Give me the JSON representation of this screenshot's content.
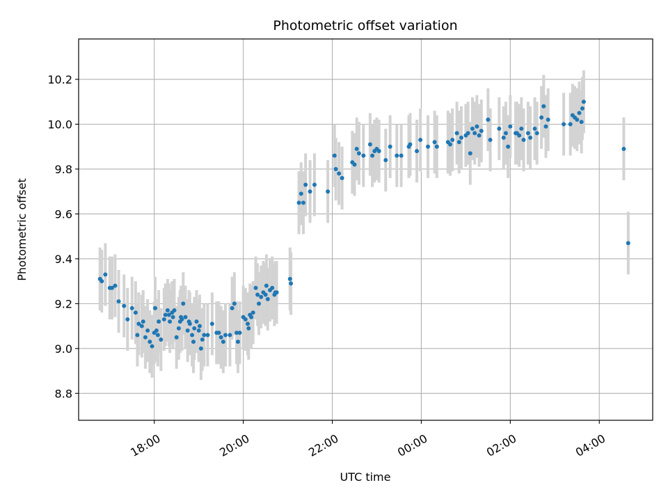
{
  "chart_data": {
    "type": "scatter",
    "title": "Photometric offset variation",
    "xlabel": "UTC time",
    "ylabel": "Photometric offset",
    "grid": true,
    "legend": "none",
    "x_unit": "hours since 18:00 UTC",
    "xlim": [
      -1.7,
      11.2
    ],
    "ylim": [
      8.68,
      10.38
    ],
    "x_ticks": [
      {
        "value": 0,
        "label": "18:00"
      },
      {
        "value": 2,
        "label": "20:00"
      },
      {
        "value": 4,
        "label": "22:00"
      },
      {
        "value": 6,
        "label": "00:00"
      },
      {
        "value": 8,
        "label": "02:00"
      },
      {
        "value": 10,
        "label": "04:00"
      }
    ],
    "y_ticks": [
      {
        "value": 8.8,
        "label": "8.8"
      },
      {
        "value": 9.0,
        "label": "9.0"
      },
      {
        "value": 9.2,
        "label": "9.2"
      },
      {
        "value": 9.4,
        "label": "9.4"
      },
      {
        "value": 9.6,
        "label": "9.6"
      },
      {
        "value": 9.8,
        "label": "9.8"
      },
      {
        "value": 10.0,
        "label": "10.0"
      },
      {
        "value": 10.2,
        "label": "10.2"
      }
    ],
    "series": [
      {
        "name": "photometric offset",
        "marker_color": "#1f77b4",
        "errorbar_color": "#d3d3d3",
        "x": [
          -1.22,
          -1.18,
          -1.1,
          -1.0,
          -0.95,
          -0.88,
          -0.8,
          -0.68,
          -0.6,
          -0.5,
          -0.42,
          -0.38,
          -0.35,
          -0.28,
          -0.25,
          -0.2,
          -0.15,
          -0.1,
          -0.05,
          0.0,
          0.02,
          0.05,
          0.08,
          0.1,
          0.15,
          0.22,
          0.25,
          0.3,
          0.33,
          0.35,
          0.4,
          0.42,
          0.45,
          0.5,
          0.55,
          0.58,
          0.6,
          0.62,
          0.65,
          0.7,
          0.75,
          0.78,
          0.8,
          0.85,
          0.88,
          0.9,
          0.95,
          1.0,
          1.02,
          1.05,
          1.08,
          1.12,
          1.2,
          1.3,
          1.4,
          1.45,
          1.5,
          1.55,
          1.6,
          1.7,
          1.75,
          1.8,
          1.85,
          1.88,
          1.92,
          2.0,
          2.05,
          2.1,
          2.12,
          2.15,
          2.18,
          2.22,
          2.28,
          2.32,
          2.35,
          2.4,
          2.45,
          2.5,
          2.52,
          2.55,
          2.6,
          2.65,
          2.7,
          2.72,
          2.75,
          3.05,
          3.07,
          3.25,
          3.3,
          3.35,
          3.4,
          3.5,
          3.6,
          3.9,
          4.05,
          4.08,
          4.15,
          4.22,
          4.45,
          4.5,
          4.55,
          4.6,
          4.7,
          4.85,
          4.9,
          4.95,
          5.0,
          5.05,
          5.2,
          5.3,
          5.45,
          5.55,
          5.72,
          5.75,
          5.9,
          5.98,
          6.15,
          6.3,
          6.35,
          6.6,
          6.65,
          6.7,
          6.8,
          6.85,
          6.9,
          7.0,
          7.05,
          7.1,
          7.15,
          7.2,
          7.25,
          7.3,
          7.35,
          7.5,
          7.55,
          7.75,
          7.85,
          7.9,
          7.95,
          8.0,
          8.12,
          8.15,
          8.2,
          8.25,
          8.3,
          8.4,
          8.45,
          8.55,
          8.6,
          8.7,
          8.75,
          8.8,
          8.85,
          9.2,
          9.35,
          9.4,
          9.45,
          9.5,
          9.55,
          9.6,
          9.62,
          9.65,
          10.55,
          10.65
        ],
        "y": [
          9.31,
          9.3,
          9.33,
          9.27,
          9.27,
          9.28,
          9.21,
          9.19,
          9.13,
          9.18,
          9.16,
          9.06,
          9.11,
          9.1,
          9.12,
          9.05,
          9.08,
          9.03,
          9.01,
          9.07,
          9.18,
          9.08,
          9.06,
          9.12,
          9.04,
          9.13,
          9.15,
          9.17,
          9.15,
          9.12,
          9.16,
          9.14,
          9.17,
          9.05,
          9.09,
          9.12,
          9.14,
          9.13,
          9.2,
          9.14,
          9.08,
          9.12,
          9.11,
          9.06,
          9.03,
          9.09,
          9.12,
          9.08,
          9.1,
          9.0,
          9.04,
          9.06,
          9.06,
          9.11,
          9.07,
          9.07,
          9.05,
          9.03,
          9.06,
          9.06,
          9.18,
          9.2,
          9.07,
          9.03,
          9.07,
          9.14,
          9.13,
          9.11,
          9.09,
          9.15,
          9.14,
          9.16,
          9.27,
          9.24,
          9.2,
          9.23,
          9.25,
          9.24,
          9.28,
          9.22,
          9.26,
          9.27,
          9.24,
          9.25,
          9.25,
          9.31,
          9.29,
          9.65,
          9.69,
          9.65,
          9.73,
          9.7,
          9.73,
          9.7,
          9.86,
          9.8,
          9.78,
          9.76,
          9.83,
          9.82,
          9.89,
          9.87,
          9.86,
          9.91,
          9.86,
          9.88,
          9.89,
          9.88,
          9.84,
          9.9,
          9.86,
          9.86,
          9.9,
          9.91,
          9.88,
          9.93,
          9.9,
          9.92,
          9.9,
          9.92,
          9.91,
          9.93,
          9.96,
          9.92,
          9.94,
          9.95,
          9.96,
          9.87,
          9.98,
          9.96,
          9.99,
          9.95,
          9.97,
          10.02,
          9.93,
          9.98,
          9.94,
          9.96,
          9.9,
          9.99,
          9.96,
          9.96,
          9.95,
          9.98,
          9.93,
          9.96,
          9.94,
          9.98,
          9.96,
          10.03,
          10.08,
          9.99,
          10.02,
          10.0,
          10.0,
          10.04,
          10.03,
          10.02,
          10.05,
          10.01,
          10.07,
          10.1,
          9.89,
          9.47
        ],
        "error": 0.14
      }
    ]
  }
}
